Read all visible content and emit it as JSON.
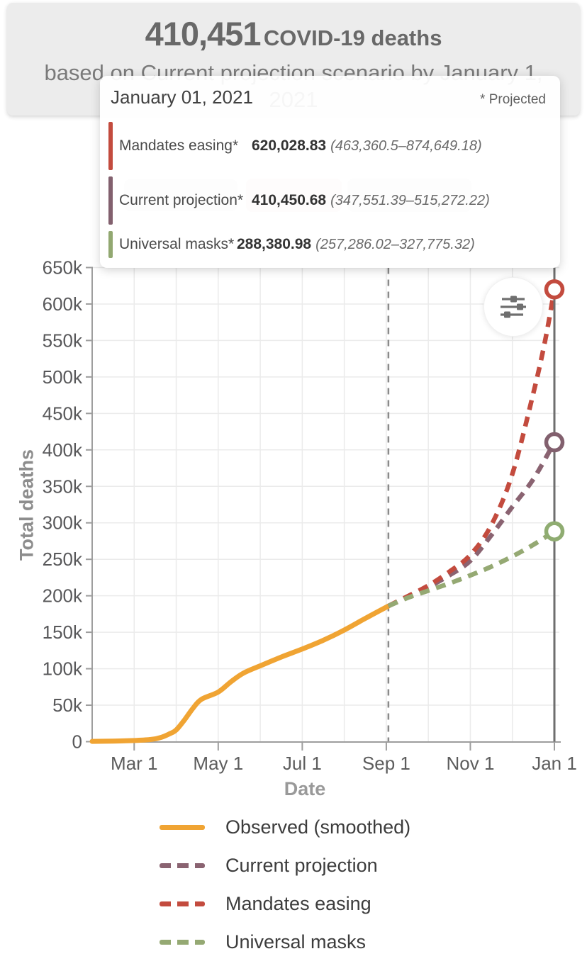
{
  "header": {
    "deaths_count": "410,451",
    "deaths_label": "COVID-19 deaths",
    "subtitle_line1": "based on Current projection scenario by January 1,",
    "subtitle_line2": "2021"
  },
  "tooltip": {
    "date": "January 01, 2021",
    "projected_note": "* Projected",
    "rows": [
      {
        "label": "Mandates easing*",
        "value": "620,028.83",
        "range": "(463,360.5–874,649.18)",
        "color": "#C34B3E"
      },
      {
        "label": "Current projection*",
        "value": "410,450.68",
        "range": "(347,551.39–515,272.22)",
        "color": "#82606E"
      },
      {
        "label": "Universal masks*",
        "value": "288,380.98",
        "range": "(257,286.02–327,775.32)",
        "color": "#92A871"
      }
    ]
  },
  "chart_data": {
    "type": "line",
    "xlabel": "Date",
    "ylabel": "Total deaths",
    "ylim": [
      0,
      650000
    ],
    "x_range": [
      "Feb 1, 2020",
      "Jan 1, 2021"
    ],
    "grid": true,
    "y_tick_labels": [
      "0",
      "50k",
      "100k",
      "150k",
      "200k",
      "250k",
      "300k",
      "350k",
      "400k",
      "450k",
      "500k",
      "550k",
      "600k",
      "650k"
    ],
    "x_tick_labels": [
      "Mar 1",
      "May 1",
      "Jul 1",
      "Sep 1",
      "Nov 1",
      "Jan 1"
    ],
    "x_tick_months": [
      1,
      3,
      5,
      7,
      9,
      11
    ],
    "today_month": 7.05,
    "hover_month": 11,
    "axis_color": "#9e9e9e",
    "grid_color": "#ebebeb",
    "today_line_color": "#8a8a8a",
    "hover_line_color": "#6e6e6e",
    "series": [
      {
        "name": "Observed (smoothed)",
        "color": "#F0A433",
        "style": "solid",
        "points_month_value_k": [
          [
            0,
            0.4
          ],
          [
            0.5,
            0.8
          ],
          [
            1,
            1.6
          ],
          [
            1.4,
            3
          ],
          [
            1.65,
            6
          ],
          [
            1.85,
            11
          ],
          [
            2,
            16
          ],
          [
            2.2,
            30
          ],
          [
            2.4,
            46
          ],
          [
            2.6,
            58
          ],
          [
            3,
            68
          ],
          [
            3.3,
            82
          ],
          [
            3.6,
            94
          ],
          [
            4,
            104
          ],
          [
            4.5,
            116
          ],
          [
            5,
            127
          ],
          [
            5.5,
            139
          ],
          [
            6,
            153
          ],
          [
            6.5,
            169
          ],
          [
            7.05,
            186
          ]
        ]
      },
      {
        "name": "Current projection",
        "color": "#8A6371",
        "style": "dashed",
        "points_month_value_k": [
          [
            7.05,
            186
          ],
          [
            7.5,
            198
          ],
          [
            8,
            212
          ],
          [
            8.5,
            228
          ],
          [
            9,
            248
          ],
          [
            9.5,
            283
          ],
          [
            10,
            322
          ],
          [
            10.5,
            360
          ],
          [
            11,
            410.45
          ]
        ]
      },
      {
        "name": "Mandates easing",
        "color": "#C34B3E",
        "style": "dashed",
        "points_month_value_k": [
          [
            7.05,
            186
          ],
          [
            7.5,
            199
          ],
          [
            8,
            214
          ],
          [
            8.5,
            233
          ],
          [
            9,
            256
          ],
          [
            9.5,
            297
          ],
          [
            10,
            367
          ],
          [
            10.5,
            478
          ],
          [
            10.78,
            550
          ],
          [
            11,
            620.03
          ]
        ]
      },
      {
        "name": "Universal masks",
        "color": "#95A973",
        "style": "dashed",
        "points_month_value_k": [
          [
            7.05,
            186
          ],
          [
            7.5,
            197
          ],
          [
            8,
            207
          ],
          [
            8.5,
            217
          ],
          [
            9,
            228
          ],
          [
            9.5,
            240
          ],
          [
            10,
            254
          ],
          [
            10.5,
            270
          ],
          [
            11,
            288.38
          ]
        ]
      }
    ],
    "end_markers": [
      {
        "series": "Mandates easing",
        "value": 620028.83,
        "color": "#C34B3E"
      },
      {
        "series": "Current projection",
        "value": 410450.68,
        "color": "#82606E"
      },
      {
        "series": "Universal masks",
        "value": 288380.98,
        "color": "#8FAC71"
      }
    ]
  },
  "legend": {
    "items": [
      {
        "label": "Observed (smoothed)",
        "color": "#F0A433",
        "dash": false
      },
      {
        "label": "Current projection",
        "color": "#8A6371",
        "dash": true
      },
      {
        "label": "Mandates easing",
        "color": "#C34B3E",
        "dash": true
      },
      {
        "label": "Universal masks",
        "color": "#95A973",
        "dash": true
      }
    ]
  },
  "controls": {
    "settings_icon": "sliders-icon"
  }
}
